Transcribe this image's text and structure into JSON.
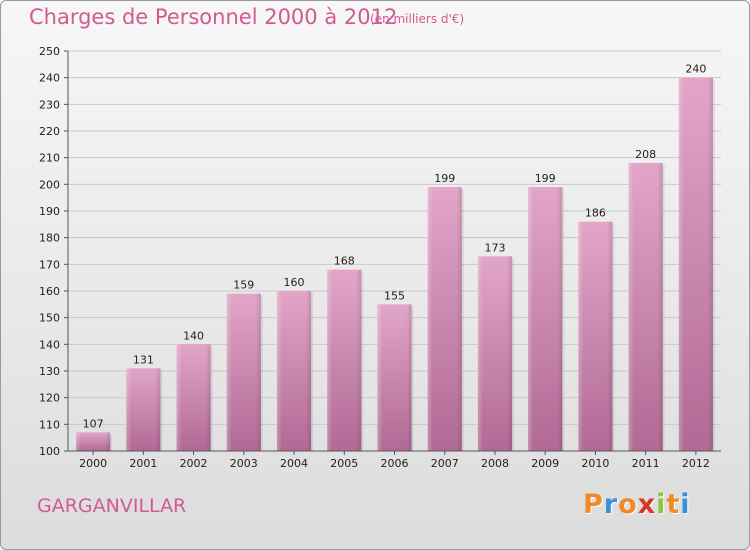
{
  "header": {
    "title": "Charges de Personnel 2000 à 2012",
    "subtitle": "(en milliers d'€)"
  },
  "footer": {
    "city": "GARGANVILLAR",
    "logo_text": "Proxiti"
  },
  "colors": {
    "title": "#d05a92",
    "bar_light": "#e2a5c8",
    "bar_dark": "#b06a95",
    "logo_letters": [
      "#f0892a",
      "#3f8fd6",
      "#f0892a",
      "#d9352b",
      "#8cc63f",
      "#f0892a",
      "#3f8fd6"
    ]
  },
  "chart_data": {
    "type": "bar",
    "categories": [
      "2000",
      "2001",
      "2002",
      "2003",
      "2004",
      "2005",
      "2006",
      "2007",
      "2008",
      "2009",
      "2010",
      "2011",
      "2012"
    ],
    "values": [
      107,
      131,
      140,
      159,
      160,
      168,
      155,
      199,
      173,
      199,
      186,
      208,
      240
    ],
    "data_labels": [
      "107",
      "131",
      "140",
      "159",
      "160",
      "168",
      "155",
      "199",
      "173",
      "199",
      "186",
      "208",
      "240"
    ],
    "yticks": [
      "100",
      "110",
      "120",
      "130",
      "140",
      "150",
      "160",
      "170",
      "180",
      "190",
      "200",
      "210",
      "220",
      "230",
      "240",
      "250"
    ],
    "ylim": [
      100,
      250
    ],
    "title": "Charges de Personnel 2000 à 2012",
    "xlabel": "",
    "ylabel": "",
    "grid": true,
    "legend": "none"
  }
}
